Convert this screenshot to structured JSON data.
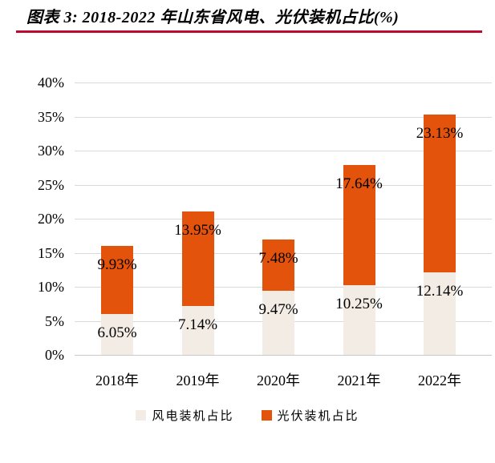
{
  "title": "图表 3: 2018-2022 年山东省风电、光伏装机占比(%)",
  "colors": {
    "title_rule": "#BB0A2E",
    "wind": "#F3ECE5",
    "pv": "#E4530B",
    "gridline": "#D9D9D9",
    "baseline": "#C9C9C9",
    "text": "#000000"
  },
  "chart_data": {
    "type": "bar",
    "stacked": true,
    "title": "图表 3: 2018-2022 年山东省风电、光伏装机占比(%)",
    "categories": [
      "2018年",
      "2019年",
      "2020年",
      "2021年",
      "2022年"
    ],
    "series": [
      {
        "name": "风电装机占比",
        "color": "#F3ECE5",
        "values": [
          6.05,
          7.14,
          9.47,
          10.25,
          12.14
        ],
        "data_labels": [
          "6.05%",
          "7.14%",
          "9.47%",
          "10.25%",
          "12.14%"
        ]
      },
      {
        "name": "光伏装机占比",
        "color": "#E4530B",
        "values": [
          9.93,
          13.95,
          7.48,
          17.64,
          23.13
        ],
        "data_labels": [
          "9.93%",
          "13.95%",
          "7.48%",
          "17.64%",
          "23.13%"
        ]
      }
    ],
    "totals": [
      15.98,
      21.09,
      16.95,
      27.89,
      35.27
    ],
    "ylim": [
      0,
      40
    ],
    "ytick_step": 5,
    "ytick_labels": [
      "0%",
      "5%",
      "10%",
      "15%",
      "20%",
      "25%",
      "30%",
      "35%",
      "40%"
    ],
    "grid": true,
    "legend_position": "bottom",
    "legend": [
      "风电装机占比",
      "光伏装机占比"
    ]
  }
}
